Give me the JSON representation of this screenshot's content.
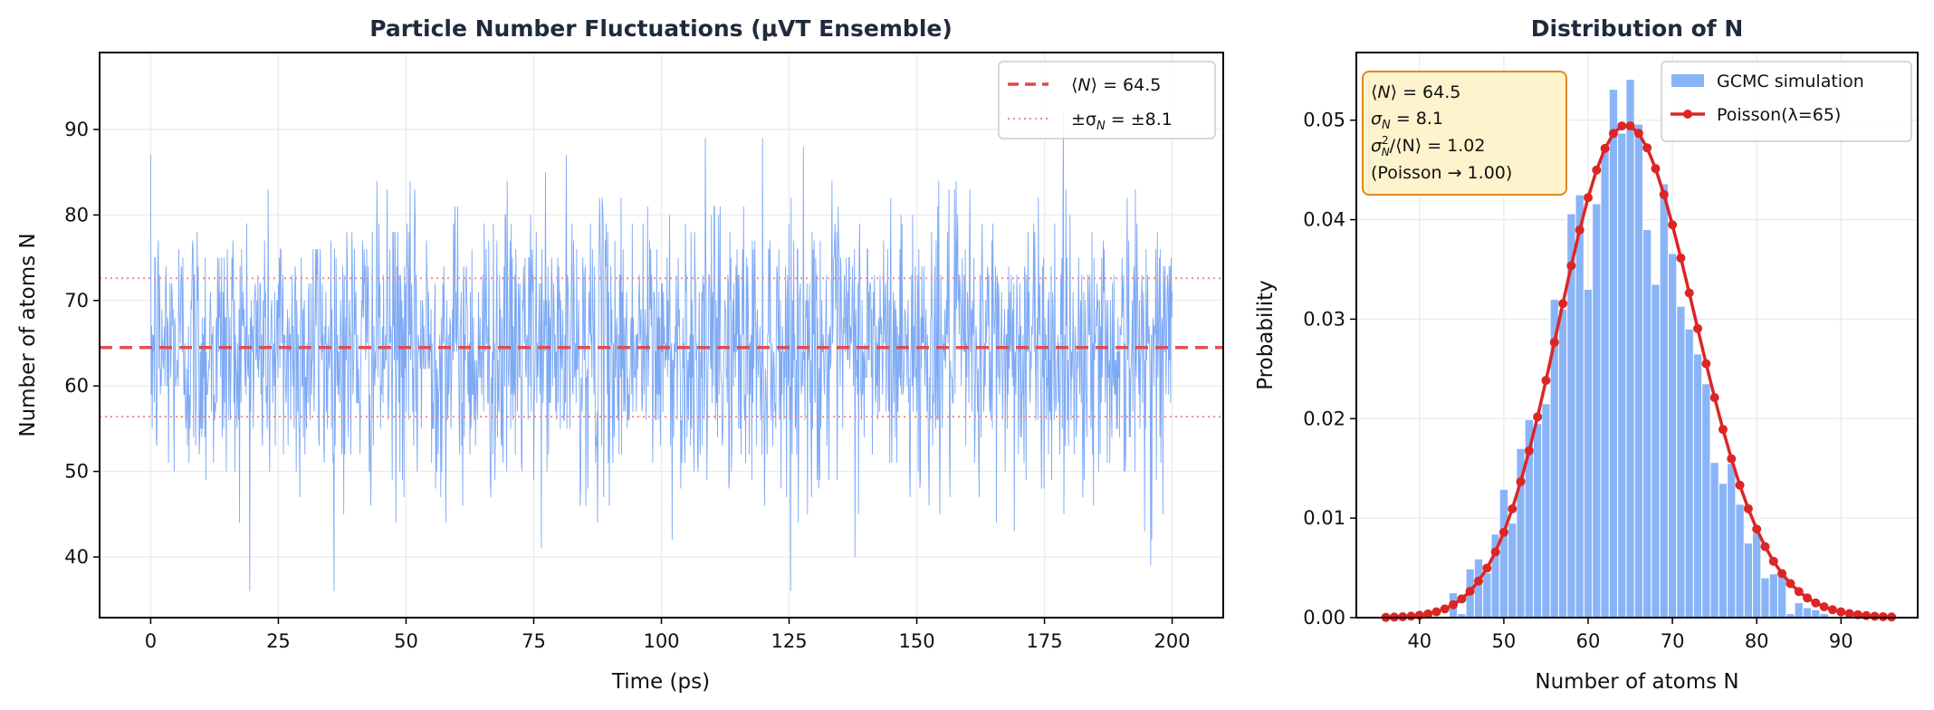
{
  "chart_data": [
    {
      "type": "line",
      "title": "Particle Number Fluctuations (μVT Ensemble)",
      "xlabel": "Time (ps)",
      "ylabel": "Number of atoms N",
      "xlim": [
        -10,
        210
      ],
      "ylim": [
        32.9,
        99
      ],
      "xticks": [
        "0",
        "25",
        "50",
        "75",
        "100",
        "125",
        "150",
        "175",
        "200"
      ],
      "xtick_values": [
        0,
        25,
        50,
        75,
        100,
        125,
        150,
        175,
        200
      ],
      "yticks": [
        "40",
        "50",
        "60",
        "70",
        "80",
        "90"
      ],
      "ytick_values": [
        40,
        50,
        60,
        70,
        80,
        90
      ],
      "grid": true,
      "series": {
        "time_range": [
          0,
          200
        ],
        "mean": 64.5,
        "sigma": 8.1,
        "min_observed": 36,
        "max_observed": 93,
        "color": "#6fa0f4"
      },
      "mean_line": {
        "value": 64.5,
        "color": "#e04848"
      },
      "sigma_lines": {
        "values": [
          56.4,
          72.6
        ],
        "color": "#f08a8a"
      },
      "legend": {
        "placement": "top-right",
        "entries": [
          {
            "pre": "⟨",
            "var": "N",
            "post": "⟩ = 64.5"
          },
          {
            "pre": "±σ",
            "sub": "N",
            "post": " = ±8.1"
          }
        ]
      }
    },
    {
      "type": "bar",
      "title": "Distribution of N",
      "xlabel": "Number of atoms N",
      "ylabel": "Probability",
      "xlim": [
        32.5,
        99.1
      ],
      "ylim": [
        0,
        0.0568
      ],
      "xticks": [
        "40",
        "50",
        "60",
        "70",
        "80",
        "90"
      ],
      "xtick_values": [
        40,
        50,
        60,
        70,
        80,
        90
      ],
      "yticks": [
        "0.00",
        "0.01",
        "0.02",
        "0.03",
        "0.04",
        "0.05"
      ],
      "ytick_values": [
        0,
        0.01,
        0.02,
        0.03,
        0.04,
        0.05
      ],
      "grid": true,
      "histogram": {
        "name": "GCMC simulation",
        "color": "#8ab4f8",
        "bins": [
          44,
          45,
          46,
          47,
          48,
          49,
          50,
          51,
          52,
          53,
          54,
          55,
          56,
          57,
          58,
          59,
          60,
          61,
          62,
          63,
          64,
          65,
          66,
          67,
          68,
          69,
          70,
          71,
          72,
          73,
          74,
          75,
          76,
          77,
          78,
          79,
          80,
          81,
          82,
          83,
          84,
          85,
          86,
          87,
          88
        ],
        "values": [
          0.0025,
          0.0004,
          0.0049,
          0.0059,
          0.0045,
          0.0084,
          0.0129,
          0.0095,
          0.017,
          0.0199,
          0.0195,
          0.0215,
          0.032,
          0.031,
          0.0406,
          0.0425,
          0.033,
          0.0416,
          0.0471,
          0.0531,
          0.0487,
          0.0541,
          0.0496,
          0.039,
          0.0335,
          0.0436,
          0.0366,
          0.0313,
          0.029,
          0.0265,
          0.0235,
          0.0156,
          0.0135,
          0.0155,
          0.0114,
          0.0075,
          0.0085,
          0.004,
          0.0044,
          0.0045,
          0.0004,
          0.0015,
          0.001,
          0.0008,
          0.0004
        ]
      },
      "poisson": {
        "name": "Poisson(λ=65)",
        "lambda": 65,
        "k_range": [
          36,
          96
        ],
        "color": "#dc2626"
      },
      "legend": {
        "placement": "top-right",
        "entries": [
          "GCMC simulation",
          "Poisson(λ=65)"
        ]
      },
      "stats_box": {
        "line1": {
          "pre": "⟨",
          "var": "N",
          "post": "⟩ = 64.5"
        },
        "line2": {
          "pre": "σ",
          "sub": "N",
          "post": " = 8.1"
        },
        "line3": {
          "pre": "σ",
          "sup": "2",
          "sub": "N",
          "post": "/⟨N⟩ = 1.02"
        },
        "line4": "(Poisson  →  1.00)",
        "fill": "#fdf3cc",
        "border": "#e08a1e"
      }
    }
  ]
}
